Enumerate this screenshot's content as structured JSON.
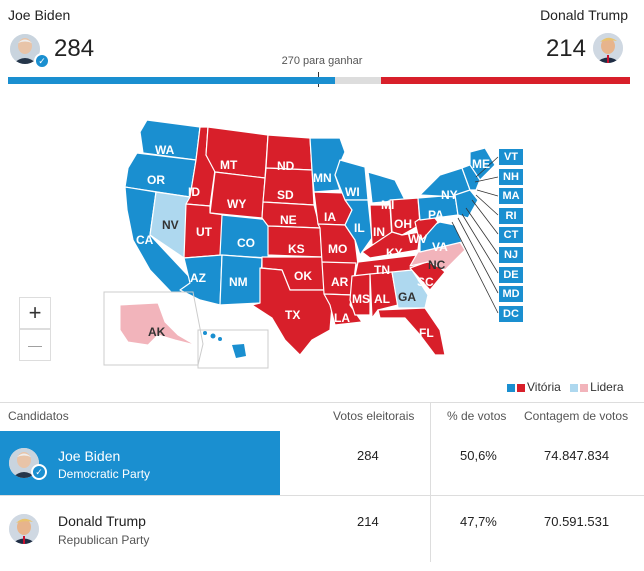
{
  "header": {
    "left": {
      "name": "Joe Biden",
      "votes": "284"
    },
    "right": {
      "name": "Donald Trump",
      "votes": "214"
    },
    "threshold_label": "270 para ganhar"
  },
  "progress": {
    "biden_electoral": 284,
    "trump_electoral": 214,
    "total": 538,
    "threshold": 270
  },
  "colors": {
    "dem": "#1a8fd0",
    "rep": "#d81f2a",
    "dem_leading": "#aed8ef",
    "rep_leading": "#f2b4bb"
  },
  "map": {
    "states": [
      {
        "code": "WA",
        "result": "dem-win"
      },
      {
        "code": "OR",
        "result": "dem-win"
      },
      {
        "code": "CA",
        "result": "dem-win"
      },
      {
        "code": "NV",
        "result": "dem-leading"
      },
      {
        "code": "ID",
        "result": "rep-win"
      },
      {
        "code": "MT",
        "result": "rep-win"
      },
      {
        "code": "WY",
        "result": "rep-win"
      },
      {
        "code": "UT",
        "result": "rep-win"
      },
      {
        "code": "CO",
        "result": "dem-win"
      },
      {
        "code": "AZ",
        "result": "dem-win"
      },
      {
        "code": "NM",
        "result": "dem-win"
      },
      {
        "code": "ND",
        "result": "rep-win"
      },
      {
        "code": "SD",
        "result": "rep-win"
      },
      {
        "code": "NE",
        "result": "rep-win"
      },
      {
        "code": "KS",
        "result": "rep-win"
      },
      {
        "code": "OK",
        "result": "rep-win"
      },
      {
        "code": "TX",
        "result": "rep-win"
      },
      {
        "code": "MN",
        "result": "dem-win"
      },
      {
        "code": "IA",
        "result": "rep-win"
      },
      {
        "code": "MO",
        "result": "rep-win"
      },
      {
        "code": "AR",
        "result": "rep-win"
      },
      {
        "code": "LA",
        "result": "rep-win"
      },
      {
        "code": "WI",
        "result": "dem-win"
      },
      {
        "code": "IL",
        "result": "dem-win"
      },
      {
        "code": "MI",
        "result": "dem-win"
      },
      {
        "code": "IN",
        "result": "rep-win"
      },
      {
        "code": "OH",
        "result": "rep-win"
      },
      {
        "code": "KY",
        "result": "rep-win"
      },
      {
        "code": "TN",
        "result": "rep-win"
      },
      {
        "code": "MS",
        "result": "rep-win"
      },
      {
        "code": "AL",
        "result": "rep-win"
      },
      {
        "code": "GA",
        "result": "dem-leading"
      },
      {
        "code": "FL",
        "result": "rep-win"
      },
      {
        "code": "SC",
        "result": "rep-win"
      },
      {
        "code": "NC",
        "result": "rep-leading"
      },
      {
        "code": "VA",
        "result": "dem-win"
      },
      {
        "code": "WV",
        "result": "rep-win"
      },
      {
        "code": "PA",
        "result": "dem-win"
      },
      {
        "code": "NY",
        "result": "dem-win"
      },
      {
        "code": "ME",
        "result": "dem-win"
      },
      {
        "code": "AK",
        "result": "rep-leading"
      },
      {
        "code": "HI",
        "result": "dem-win"
      }
    ],
    "small_states": [
      "VT",
      "NH",
      "MA",
      "RI",
      "CT",
      "NJ",
      "DE",
      "MD",
      "DC"
    ],
    "zoom_in": "+",
    "zoom_out": "—"
  },
  "legend": {
    "win": "Vitória",
    "leading": "Lidera"
  },
  "table": {
    "headers": [
      "Candidatos",
      "Votos eleitorais",
      "% de votos",
      "Contagem de votos"
    ],
    "rows": [
      {
        "name": "Joe Biden",
        "party": "Democratic Party",
        "electoral": "284",
        "pct": "50,6%",
        "count": "74.847.834"
      },
      {
        "name": "Donald Trump",
        "party": "Republican Party",
        "electoral": "214",
        "pct": "47,7%",
        "count": "70.591.531"
      }
    ]
  }
}
